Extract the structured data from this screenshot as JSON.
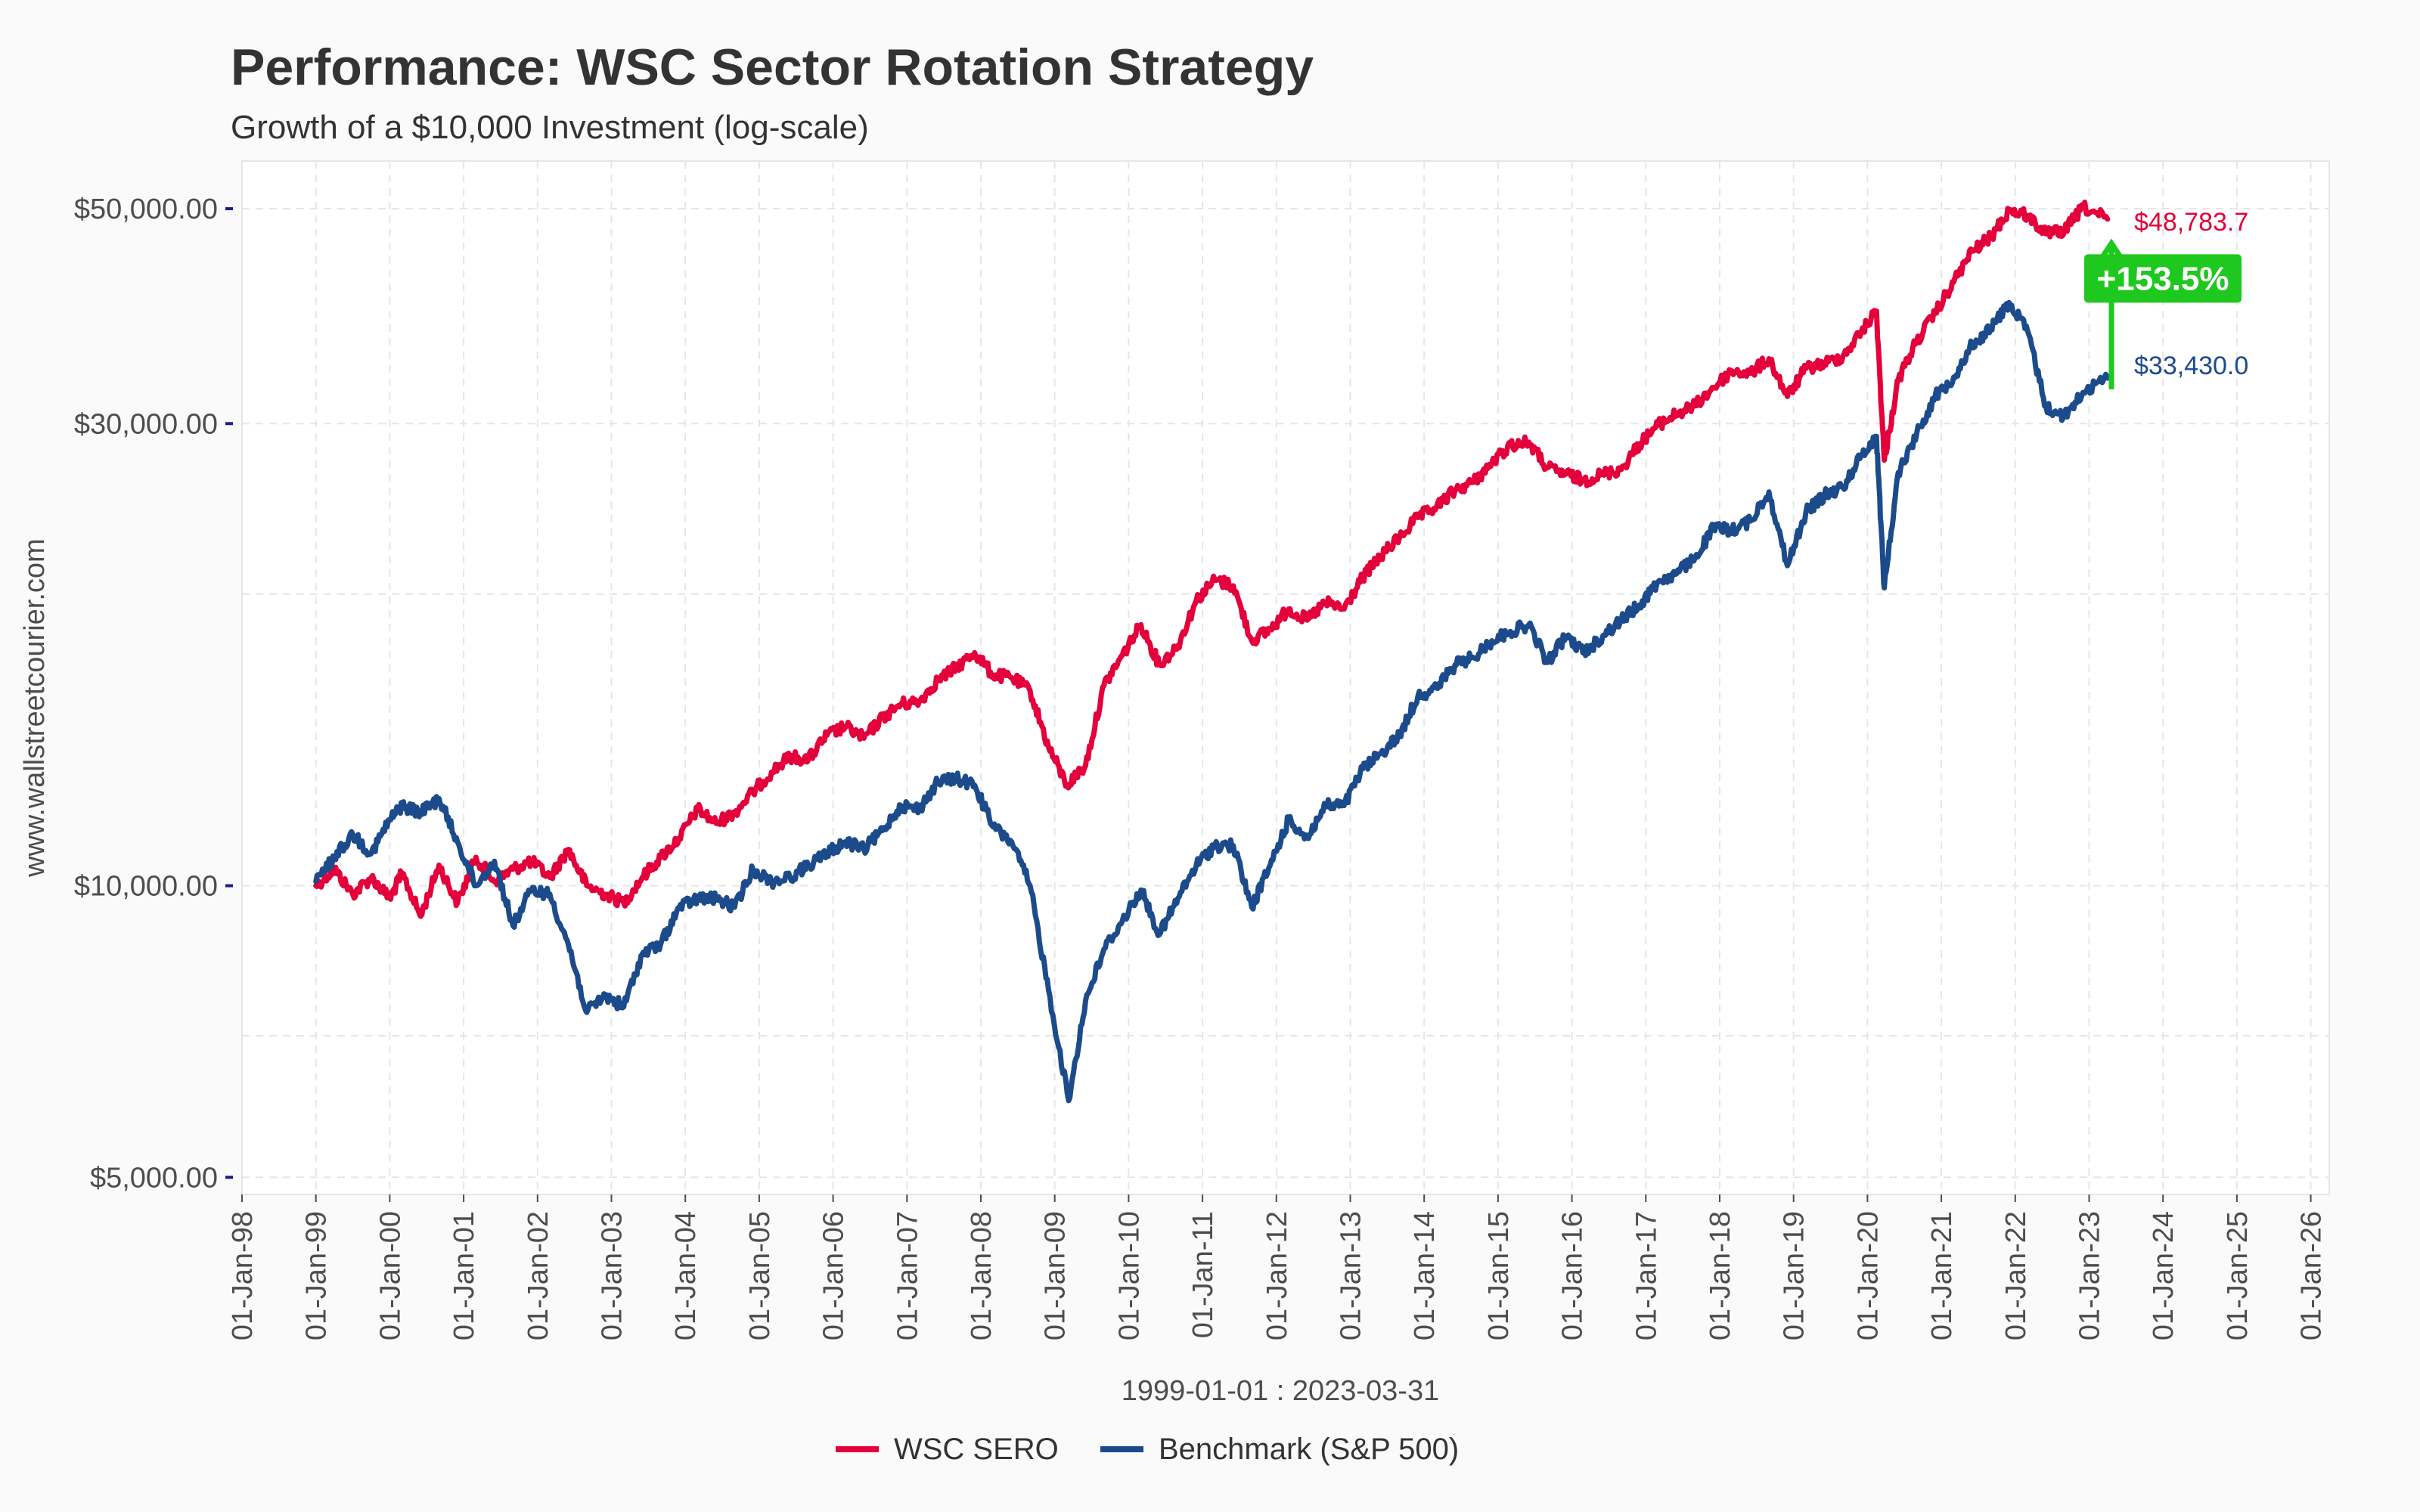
{
  "chart_data": {
    "type": "line",
    "title": "Performance: WSC Sector Rotation Strategy",
    "subtitle": "Growth of a $10,000 Investment (log-scale)",
    "xlabel": "1999-01-01 : 2023-03-31",
    "ylabel": "www.wallstreetcourier.com",
    "y_scale": "log",
    "ylim": [
      4800,
      56000
    ],
    "xlim": [
      1998.0,
      2026.25
    ],
    "grid": true,
    "legend_position": "bottom",
    "y_ticks": [
      {
        "value": 50000,
        "label": "$50,000.00"
      },
      {
        "value": 30000,
        "label": "$30,000.00"
      },
      {
        "value": 10000,
        "label": "$10,000.00"
      },
      {
        "value": 5000,
        "label": "$5,000.00"
      }
    ],
    "x_ticks": [
      "01-Jan-98",
      "01-Jan-99",
      "01-Jan-00",
      "01-Jan-01",
      "01-Jan-02",
      "01-Jan-03",
      "01-Jan-04",
      "01-Jan-05",
      "01-Jan-06",
      "01-Jan-07",
      "01-Jan-08",
      "01-Jan-09",
      "01-Jan-10",
      "01-Jan-11",
      "01-Jan-12",
      "01-Jan-13",
      "01-Jan-14",
      "01-Jan-15",
      "01-Jan-16",
      "01-Jan-17",
      "01-Jan-18",
      "01-Jan-19",
      "01-Jan-20",
      "01-Jan-21",
      "01-Jan-22",
      "01-Jan-23",
      "01-Jan-24",
      "01-Jan-25",
      "01-Jan-26"
    ],
    "series": [
      {
        "name": "WSC SERO",
        "color": "#e4003b",
        "end_label": "$48,783.7",
        "points": [
          [
            "1999-01-01",
            10000
          ],
          [
            "1999-04-01",
            10400
          ],
          [
            "1999-07-01",
            9800
          ],
          [
            "1999-10-01",
            10200
          ],
          [
            "2000-01-01",
            9700
          ],
          [
            "2000-03-01",
            10300
          ],
          [
            "2000-06-01",
            9300
          ],
          [
            "2000-09-01",
            10500
          ],
          [
            "2000-12-01",
            9600
          ],
          [
            "2001-03-01",
            10700
          ],
          [
            "2001-06-01",
            10100
          ],
          [
            "2001-09-01",
            10400
          ],
          [
            "2001-12-01",
            10600
          ],
          [
            "2002-03-01",
            10200
          ],
          [
            "2002-06-01",
            10900
          ],
          [
            "2002-09-01",
            10000
          ],
          [
            "2002-12-01",
            9800
          ],
          [
            "2003-03-01",
            9600
          ],
          [
            "2003-06-01",
            10200
          ],
          [
            "2003-09-01",
            10700
          ],
          [
            "2003-12-01",
            11200
          ],
          [
            "2004-03-01",
            12000
          ],
          [
            "2004-06-01",
            11600
          ],
          [
            "2004-09-01",
            11900
          ],
          [
            "2004-12-01",
            12500
          ],
          [
            "2005-03-01",
            13100
          ],
          [
            "2005-06-01",
            13600
          ],
          [
            "2005-09-01",
            13500
          ],
          [
            "2005-12-01",
            14300
          ],
          [
            "2006-03-01",
            14600
          ],
          [
            "2006-06-01",
            14200
          ],
          [
            "2006-09-01",
            14900
          ],
          [
            "2006-12-01",
            15400
          ],
          [
            "2007-03-01",
            15500
          ],
          [
            "2007-06-01",
            16300
          ],
          [
            "2007-09-01",
            16800
          ],
          [
            "2007-12-01",
            17400
          ],
          [
            "2008-03-01",
            16500
          ],
          [
            "2008-06-01",
            16400
          ],
          [
            "2008-09-01",
            15900
          ],
          [
            "2008-12-01",
            13900
          ],
          [
            "2009-03-01",
            12700
          ],
          [
            "2009-06-01",
            13300
          ],
          [
            "2009-09-01",
            16100
          ],
          [
            "2009-12-01",
            17300
          ],
          [
            "2010-03-01",
            18600
          ],
          [
            "2010-06-01",
            16900
          ],
          [
            "2010-09-01",
            17700
          ],
          [
            "2010-12-01",
            19700
          ],
          [
            "2011-03-01",
            20700
          ],
          [
            "2011-06-01",
            20400
          ],
          [
            "2011-09-01",
            17900
          ],
          [
            "2011-12-01",
            18400
          ],
          [
            "2012-03-01",
            19300
          ],
          [
            "2012-06-01",
            18800
          ],
          [
            "2012-09-01",
            19600
          ],
          [
            "2012-12-01",
            19300
          ],
          [
            "2013-03-01",
            20800
          ],
          [
            "2013-06-01",
            21900
          ],
          [
            "2013-09-01",
            22900
          ],
          [
            "2013-12-01",
            24000
          ],
          [
            "2014-03-01",
            24600
          ],
          [
            "2014-06-01",
            25600
          ],
          [
            "2014-09-01",
            26100
          ],
          [
            "2014-12-01",
            27300
          ],
          [
            "2015-03-01",
            28500
          ],
          [
            "2015-06-01",
            28700
          ],
          [
            "2015-09-01",
            27000
          ],
          [
            "2015-12-01",
            26600
          ],
          [
            "2016-03-01",
            26200
          ],
          [
            "2016-06-01",
            26600
          ],
          [
            "2016-09-01",
            26900
          ],
          [
            "2016-12-01",
            28600
          ],
          [
            "2017-03-01",
            29900
          ],
          [
            "2017-06-01",
            30700
          ],
          [
            "2017-09-01",
            31300
          ],
          [
            "2017-12-01",
            32700
          ],
          [
            "2018-03-01",
            34000
          ],
          [
            "2018-06-01",
            33800
          ],
          [
            "2018-09-01",
            35000
          ],
          [
            "2018-12-01",
            32000
          ],
          [
            "2019-03-01",
            34200
          ],
          [
            "2019-06-01",
            34600
          ],
          [
            "2019-09-01",
            35200
          ],
          [
            "2019-12-01",
            37300
          ],
          [
            "2020-02-15",
            39200
          ],
          [
            "2020-03-23",
            27500
          ],
          [
            "2020-06-01",
            33300
          ],
          [
            "2020-09-01",
            36500
          ],
          [
            "2020-12-01",
            39000
          ],
          [
            "2021-03-01",
            42000
          ],
          [
            "2021-06-01",
            45200
          ],
          [
            "2021-09-01",
            46700
          ],
          [
            "2021-12-01",
            49800
          ],
          [
            "2022-03-01",
            49200
          ],
          [
            "2022-06-01",
            47100
          ],
          [
            "2022-09-01",
            47400
          ],
          [
            "2022-12-01",
            50200
          ],
          [
            "2023-03-31",
            48784
          ]
        ]
      },
      {
        "name": "Benchmark (S&P 500)",
        "color": "#1c4b8c",
        "end_label": "$33,430.0",
        "points": [
          [
            "1999-01-01",
            10100
          ],
          [
            "1999-04-01",
            10700
          ],
          [
            "1999-07-01",
            11300
          ],
          [
            "1999-10-01",
            10800
          ],
          [
            "2000-01-01",
            11700
          ],
          [
            "2000-03-01",
            12100
          ],
          [
            "2000-06-01",
            11900
          ],
          [
            "2000-09-01",
            12300
          ],
          [
            "2000-12-01",
            11100
          ],
          [
            "2001-03-01",
            10000
          ],
          [
            "2001-06-01",
            10600
          ],
          [
            "2001-09-01",
            9100
          ],
          [
            "2001-12-01",
            9900
          ],
          [
            "2002-03-01",
            9800
          ],
          [
            "2002-06-01",
            8700
          ],
          [
            "2002-09-01",
            7400
          ],
          [
            "2002-12-01",
            7700
          ],
          [
            "2003-03-01",
            7500
          ],
          [
            "2003-06-01",
            8500
          ],
          [
            "2003-09-01",
            8700
          ],
          [
            "2003-12-01",
            9500
          ],
          [
            "2004-03-01",
            9700
          ],
          [
            "2004-06-01",
            9700
          ],
          [
            "2004-09-01",
            9500
          ],
          [
            "2004-12-01",
            10400
          ],
          [
            "2005-03-01",
            10100
          ],
          [
            "2005-06-01",
            10200
          ],
          [
            "2005-09-01",
            10500
          ],
          [
            "2005-12-01",
            10800
          ],
          [
            "2006-03-01",
            11100
          ],
          [
            "2006-06-01",
            10900
          ],
          [
            "2006-09-01",
            11400
          ],
          [
            "2006-12-01",
            12100
          ],
          [
            "2007-03-01",
            12000
          ],
          [
            "2007-06-01",
            12800
          ],
          [
            "2007-09-01",
            12900
          ],
          [
            "2007-12-01",
            12700
          ],
          [
            "2008-03-01",
            11500
          ],
          [
            "2008-06-01",
            11100
          ],
          [
            "2008-09-01",
            10000
          ],
          [
            "2008-12-01",
            7800
          ],
          [
            "2009-03-09",
            6000
          ],
          [
            "2009-06-01",
            7600
          ],
          [
            "2009-09-01",
            8600
          ],
          [
            "2009-12-01",
            9200
          ],
          [
            "2010-03-01",
            9900
          ],
          [
            "2010-06-01",
            8900
          ],
          [
            "2010-09-01",
            9700
          ],
          [
            "2010-12-01",
            10500
          ],
          [
            "2011-03-01",
            11000
          ],
          [
            "2011-06-01",
            11000
          ],
          [
            "2011-09-01",
            9500
          ],
          [
            "2011-12-01",
            10500
          ],
          [
            "2012-03-01",
            11700
          ],
          [
            "2012-06-01",
            11200
          ],
          [
            "2012-09-01",
            12100
          ],
          [
            "2012-12-01",
            12100
          ],
          [
            "2013-03-01",
            13200
          ],
          [
            "2013-06-01",
            13700
          ],
          [
            "2013-09-01",
            14300
          ],
          [
            "2013-12-01",
            15700
          ],
          [
            "2014-03-01",
            16000
          ],
          [
            "2014-06-01",
            16900
          ],
          [
            "2014-09-01",
            17200
          ],
          [
            "2014-12-01",
            17900
          ],
          [
            "2015-03-01",
            18300
          ],
          [
            "2015-06-01",
            18600
          ],
          [
            "2015-09-01",
            17000
          ],
          [
            "2015-12-01",
            18100
          ],
          [
            "2016-03-01",
            17400
          ],
          [
            "2016-06-01",
            18100
          ],
          [
            "2016-09-01",
            18800
          ],
          [
            "2016-12-01",
            19500
          ],
          [
            "2017-03-01",
            20600
          ],
          [
            "2017-06-01",
            21000
          ],
          [
            "2017-09-01",
            21800
          ],
          [
            "2017-12-01",
            23400
          ],
          [
            "2018-03-01",
            23300
          ],
          [
            "2018-06-01",
            23800
          ],
          [
            "2018-09-01",
            25500
          ],
          [
            "2018-12-01",
            21400
          ],
          [
            "2019-03-01",
            24300
          ],
          [
            "2019-06-01",
            25300
          ],
          [
            "2019-09-01",
            25800
          ],
          [
            "2019-12-01",
            27800
          ],
          [
            "2020-02-15",
            29100
          ],
          [
            "2020-03-23",
            20300
          ],
          [
            "2020-06-01",
            26700
          ],
          [
            "2020-09-01",
            29300
          ],
          [
            "2020-12-01",
            32000
          ],
          [
            "2021-03-01",
            33500
          ],
          [
            "2021-06-01",
            36200
          ],
          [
            "2021-09-01",
            37600
          ],
          [
            "2021-12-01",
            40000
          ],
          [
            "2022-03-01",
            37400
          ],
          [
            "2022-06-01",
            31200
          ],
          [
            "2022-09-01",
            30500
          ],
          [
            "2022-12-01",
            32300
          ],
          [
            "2023-03-31",
            33430
          ]
        ]
      }
    ],
    "annotation": {
      "label": "+153.5%",
      "color": "#1ec81e"
    }
  }
}
